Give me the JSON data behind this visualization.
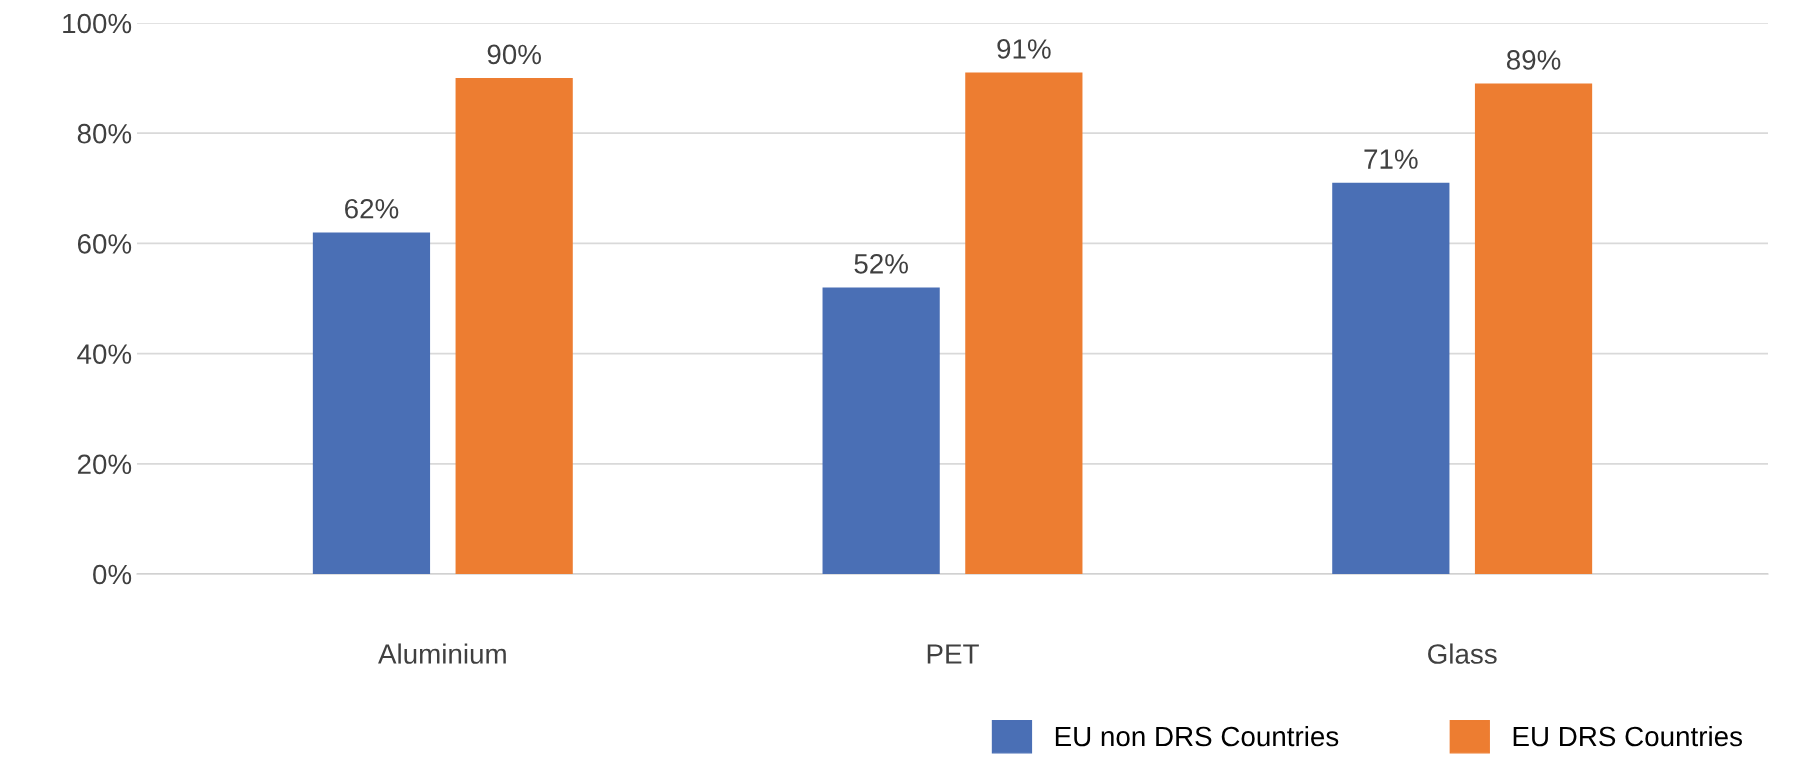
{
  "chart_data": {
    "type": "bar",
    "categories": [
      "Aluminium",
      "PET",
      "Glass"
    ],
    "series": [
      {
        "name": "EU non DRS Countries",
        "color": "#4a6fb5",
        "values": [
          62,
          52,
          71
        ],
        "value_labels": [
          "62%",
          "52%",
          "71%"
        ]
      },
      {
        "name": "EU DRS Countries",
        "color": "#ed7d31",
        "values": [
          90,
          91,
          89
        ],
        "value_labels": [
          "90%",
          "91%",
          "89%"
        ]
      }
    ],
    "ylim": [
      0,
      100
    ],
    "yticks": [
      {
        "value": 0,
        "label": "0%"
      },
      {
        "value": 20,
        "label": "20%"
      },
      {
        "value": 40,
        "label": "40%"
      },
      {
        "value": 60,
        "label": "60%"
      },
      {
        "value": 80,
        "label": "80%"
      },
      {
        "value": 100,
        "label": "100%"
      }
    ],
    "grid": "y",
    "legend": "bottom right"
  }
}
